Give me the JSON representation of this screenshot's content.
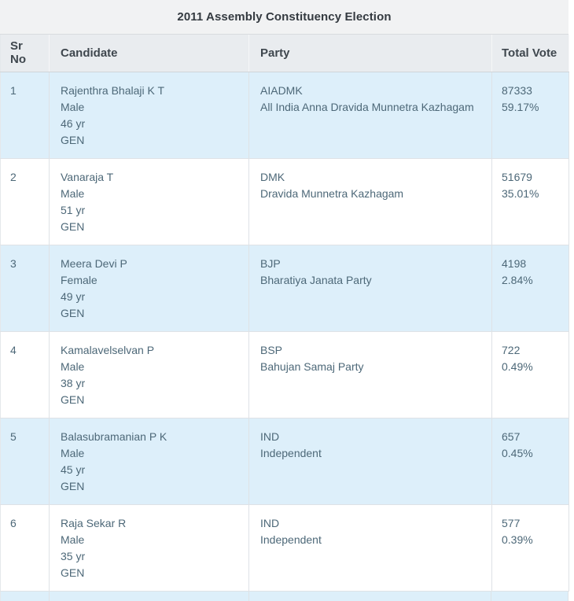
{
  "title": "2011 Assembly Constituency Election",
  "columns": [
    "Sr No",
    "Candidate",
    "Party",
    "Total Vote"
  ],
  "rows": [
    {
      "sr": "1",
      "candidate": {
        "name": "Rajenthra Bhalaji K T",
        "gender": "Male",
        "age": "46 yr",
        "category": "GEN"
      },
      "party": {
        "abbr": "AIADMK",
        "full": "All India Anna Dravida Munnetra Kazhagam"
      },
      "votes": "87333",
      "percent": "59.17%"
    },
    {
      "sr": "2",
      "candidate": {
        "name": "Vanaraja T",
        "gender": "Male",
        "age": "51 yr",
        "category": "GEN"
      },
      "party": {
        "abbr": "DMK",
        "full": "Dravida Munnetra Kazhagam"
      },
      "votes": "51679",
      "percent": "35.01%"
    },
    {
      "sr": "3",
      "candidate": {
        "name": "Meera Devi P",
        "gender": "Female",
        "age": "49 yr",
        "category": "GEN"
      },
      "party": {
        "abbr": "BJP",
        "full": "Bharatiya Janata Party"
      },
      "votes": "4198",
      "percent": "2.84%"
    },
    {
      "sr": "4",
      "candidate": {
        "name": "Kamalavelselvan P",
        "gender": "Male",
        "age": "38 yr",
        "category": "GEN"
      },
      "party": {
        "abbr": "BSP",
        "full": "Bahujan Samaj Party"
      },
      "votes": "722",
      "percent": "0.49%"
    },
    {
      "sr": "5",
      "candidate": {
        "name": "Balasubramanian P K",
        "gender": "Male",
        "age": "45 yr",
        "category": "GEN"
      },
      "party": {
        "abbr": "IND",
        "full": "Independent"
      },
      "votes": "657",
      "percent": "0.45%"
    },
    {
      "sr": "6",
      "candidate": {
        "name": "Raja Sekar R",
        "gender": "Male",
        "age": "35 yr",
        "category": "GEN"
      },
      "party": {
        "abbr": "IND",
        "full": "Independent"
      },
      "votes": "577",
      "percent": "0.39%"
    }
  ],
  "colors": {
    "title_band_bg": "#f1f2f3",
    "header_row_bg": "#e9ecef",
    "row_stripe_blue": "#ddeffa",
    "row_white": "#ffffff",
    "body_text": "#4d6878",
    "header_text": "#3f474e",
    "title_text": "#343a40",
    "grid_border": "#dee2e6"
  }
}
